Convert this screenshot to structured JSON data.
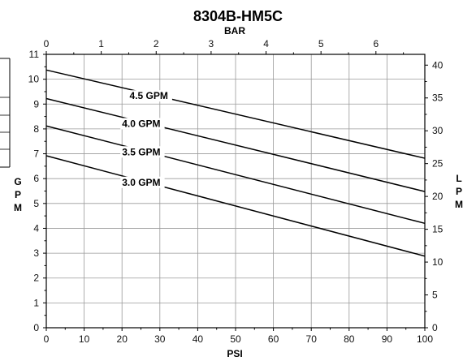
{
  "chart_data": {
    "type": "line",
    "title": "8304B-HM5C",
    "xlabel": "PSI",
    "x2label": "BAR",
    "ylabel": [
      "G",
      "P",
      "M"
    ],
    "y2label": [
      "L",
      "P",
      "M"
    ],
    "xlim": [
      0,
      100
    ],
    "ylim": [
      0,
      11
    ],
    "x2lim": [
      0,
      6.89
    ],
    "y2lim": [
      0,
      41.64
    ],
    "xticks": [
      0,
      10,
      20,
      30,
      40,
      50,
      60,
      70,
      80,
      90,
      100
    ],
    "yticks": [
      0,
      1,
      2,
      3,
      4,
      5,
      6,
      7,
      8,
      9,
      10,
      11
    ],
    "x2ticks": [
      0,
      1,
      2,
      3,
      4,
      5,
      6
    ],
    "y2ticks": [
      0,
      5,
      10,
      15,
      20,
      25,
      30,
      35,
      40
    ],
    "grid": true,
    "series": [
      {
        "name": "4.5 GPM",
        "x": [
          0,
          100
        ],
        "y": [
          10.37,
          6.82
        ]
      },
      {
        "name": "4.0 GPM",
        "x": [
          0,
          100
        ],
        "y": [
          9.22,
          5.48
        ]
      },
      {
        "name": "3.5 GPM",
        "x": [
          0,
          100
        ],
        "y": [
          8.12,
          4.2
        ]
      },
      {
        "name": "3.0 GPM",
        "x": [
          0,
          100
        ],
        "y": [
          6.92,
          2.88
        ]
      }
    ],
    "series_label_at_x": [
      22,
      20,
      20,
      20
    ]
  }
}
